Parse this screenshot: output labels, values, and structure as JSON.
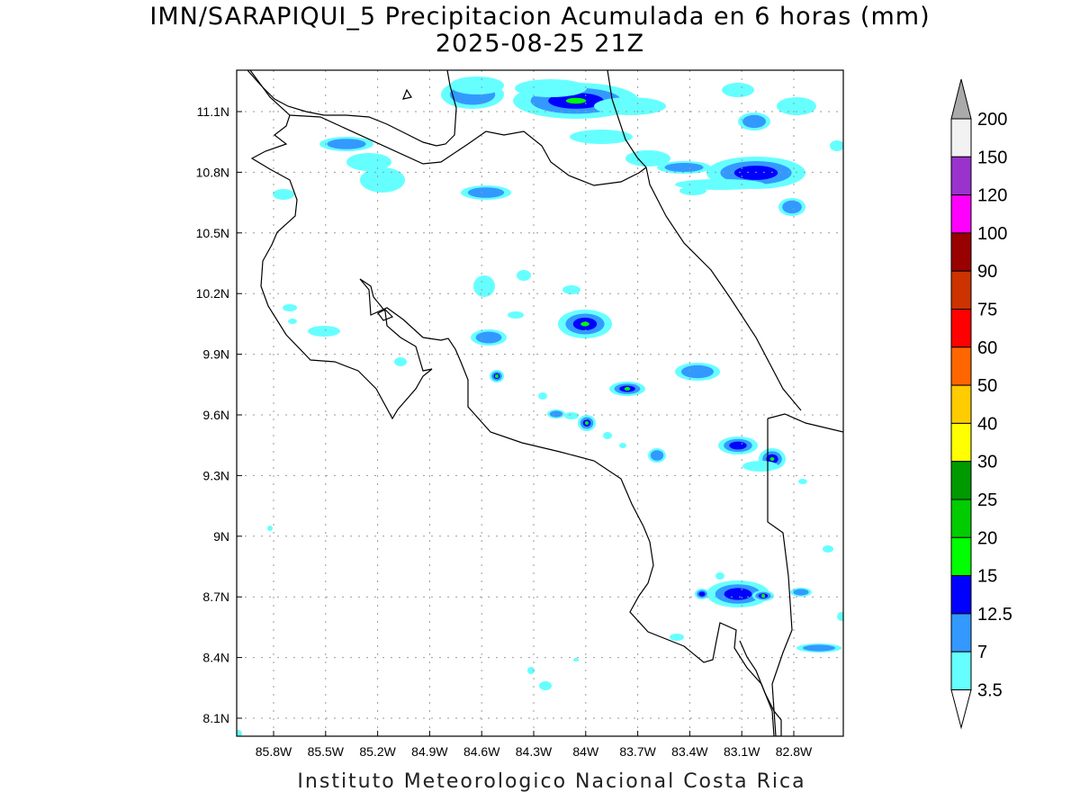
{
  "title": {
    "line1": "IMN/SARAPIQUI_5 Precipitacion Acumulada en 6 horas (mm)",
    "line2": "2025-08-25 21Z"
  },
  "credit": "Instituto Meteorologico Nacional Costa Rica",
  "axes": {
    "lon_labels": [
      "85.8W",
      "85.5W",
      "85.2W",
      "84.9W",
      "84.6W",
      "84.3W",
      "84W",
      "83.7W",
      "83.4W",
      "83.1W",
      "82.8W"
    ],
    "lat_labels": [
      "11.1N",
      "10.8N",
      "10.5N",
      "10.2N",
      "9.9N",
      "9.6N",
      "9.3N",
      "9N",
      "8.7N",
      "8.4N",
      "8.1N"
    ]
  },
  "colorbar": {
    "levels": [
      "200",
      "150",
      "120",
      "100",
      "90",
      "75",
      "60",
      "50",
      "40",
      "30",
      "25",
      "20",
      "15",
      "12.5",
      "7",
      "3.5"
    ],
    "colors": [
      "#f2f2f2",
      "#9933cc",
      "#ff00ff",
      "#990000",
      "#cc3300",
      "#ff0000",
      "#ff6600",
      "#ffcc00",
      "#ffff00",
      "#009900",
      "#00cc00",
      "#00ff00",
      "#0000ff",
      "#3399ff",
      "#66ffff"
    ],
    "over_color": "#aaaaaa",
    "under_color": "#ffffff"
  }
}
